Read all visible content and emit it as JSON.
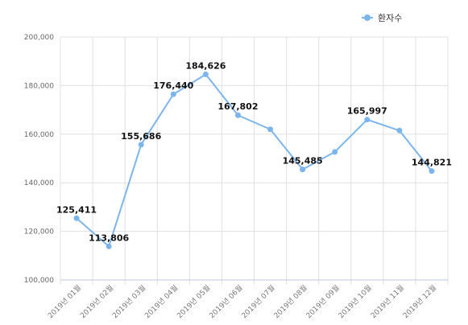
{
  "chart_data": {
    "type": "line",
    "categories": [
      "2019년 01월",
      "2019년 02월",
      "2019년 03월",
      "2019년 04월",
      "2019년 05월",
      "2019년 06월",
      "2019년 07월",
      "2019년 08월",
      "2019년 09월",
      "2019년 10월",
      "2019년 11월",
      "2019년 12월"
    ],
    "series": [
      {
        "name": "환자수",
        "color": "#7cb5ec",
        "values": [
          125411,
          113806,
          155686,
          176440,
          184626,
          167802,
          162000,
          145485,
          152700,
          165997,
          161500,
          144821
        ]
      }
    ],
    "data_labels": [
      {
        "index": 0,
        "text": "125,411"
      },
      {
        "index": 1,
        "text": "113,806"
      },
      {
        "index": 2,
        "text": "155,686"
      },
      {
        "index": 3,
        "text": "176,440"
      },
      {
        "index": 4,
        "text": "184,626"
      },
      {
        "index": 5,
        "text": "167,802"
      },
      {
        "index": 7,
        "text": "145,485"
      },
      {
        "index": 9,
        "text": "165,997"
      },
      {
        "index": 11,
        "text": "144,821"
      }
    ],
    "y_ticks": [
      "100,000",
      "120,000",
      "140,000",
      "160,000",
      "180,000",
      "200,000"
    ],
    "ylim": [
      100000,
      200000
    ],
    "grid": true,
    "legend_position": "top-right",
    "title": "",
    "xlabel": "",
    "ylabel": ""
  }
}
